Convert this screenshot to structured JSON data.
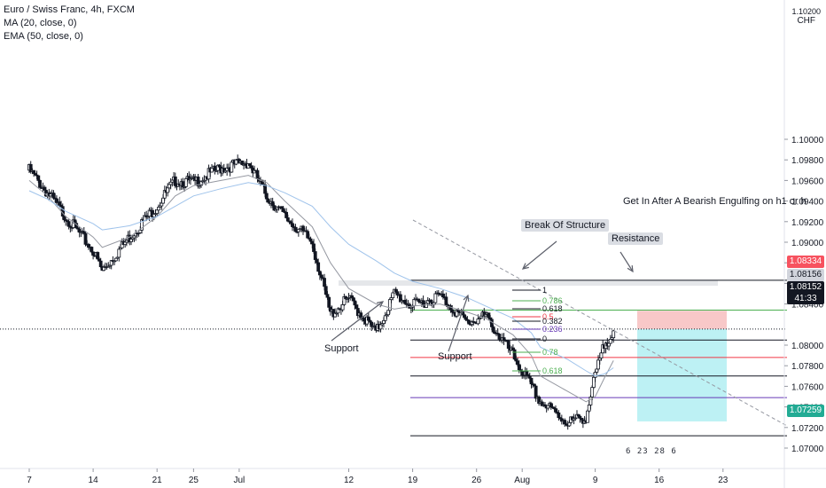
{
  "legend": {
    "symbol": "Euro / Swiss Franc, 4h, FXCM",
    "ma": "MA (20, close, 0)",
    "ema": "EMA (50, close, 0)"
  },
  "axis": {
    "currency": "CHF",
    "currency_top_tick": "1.10200",
    "y_ticks": [
      "1.10000",
      "1.09800",
      "1.09600",
      "1.09400",
      "1.09200",
      "1.09000",
      "1.08800",
      "1.08600",
      "1.08400",
      "1.08000",
      "1.07800",
      "1.07600",
      "1.07400",
      "1.07200",
      "1.07000"
    ],
    "x_ticks": [
      "7",
      "14",
      "21",
      "25",
      "Jul",
      "12",
      "19",
      "26",
      "Aug",
      "9",
      "16",
      "23"
    ]
  },
  "price_labels": {
    "resistance_price": "1.08334",
    "entry_price": "1.08156",
    "current_price": "1.08152",
    "countdown": "41:33",
    "target_price": "1.07259"
  },
  "colors": {
    "bull": "#ffffff",
    "bear": "#131722",
    "ma": "#9598a1",
    "ema": "#9fc3eb",
    "stop_zone": "#f5b5b5",
    "target_zone": "#a7ecf0",
    "resistance_line": "#4caf50",
    "fib_red": "#f23645",
    "fib_purple": "#673ab7",
    "target_label": "#22ab94",
    "resistance_label": "#f7525f"
  },
  "annotations": {
    "note": "Get In After A Bearish Engulfing on h1 or h",
    "bos": "Break Of Structure",
    "resistance": "Resistance",
    "support1": "Support",
    "support2": "Support"
  },
  "fib_levels": [
    "1",
    "0.786",
    "0.618",
    "0.5",
    "0.382",
    "0.236",
    "0",
    "0.78",
    "0.618"
  ],
  "watermark": "6 23 28 6",
  "chart_data": {
    "type": "candlestick",
    "title": "Euro / Swiss Franc, 4h, FXCM",
    "xlabel": "",
    "ylabel": "CHF",
    "ylim": [
      1.069,
      1.102
    ],
    "x": [
      "7",
      "14",
      "21",
      "25",
      "Jul",
      "12",
      "19",
      "26",
      "Aug",
      "9",
      "16",
      "23"
    ],
    "price_path": [
      {
        "x": "Jun 7",
        "y": 1.097
      },
      {
        "x": "Jun 9",
        "y": 1.0948
      },
      {
        "x": "Jun 11",
        "y": 1.0925
      },
      {
        "x": "Jun 14",
        "y": 1.0892
      },
      {
        "x": "Jun 15",
        "y": 1.0872
      },
      {
        "x": "Jun 18",
        "y": 1.0905
      },
      {
        "x": "Jun 21",
        "y": 1.0935
      },
      {
        "x": "Jun 23",
        "y": 1.096
      },
      {
        "x": "Jun 25",
        "y": 1.0958
      },
      {
        "x": "Jun 28",
        "y": 1.0972
      },
      {
        "x": "Jul 1",
        "y": 1.0978
      },
      {
        "x": "Jul 3",
        "y": 1.0945
      },
      {
        "x": "Jul 5",
        "y": 1.0925
      },
      {
        "x": "Jul 8",
        "y": 1.09
      },
      {
        "x": "Jul 10",
        "y": 1.083
      },
      {
        "x": "Jul 12",
        "y": 1.0845
      },
      {
        "x": "Jul 15",
        "y": 1.0812
      },
      {
        "x": "Jul 17",
        "y": 1.085
      },
      {
        "x": "Jul 19",
        "y": 1.0838
      },
      {
        "x": "Jul 22",
        "y": 1.0848
      },
      {
        "x": "Jul 25",
        "y": 1.0822
      },
      {
        "x": "Jul 27",
        "y": 1.0828
      },
      {
        "x": "Jul 30",
        "y": 1.079
      },
      {
        "x": "Aug 1",
        "y": 1.076
      },
      {
        "x": "Aug 2",
        "y": 1.0745
      },
      {
        "x": "Aug 5",
        "y": 1.0725
      },
      {
        "x": "Aug 7",
        "y": 1.073
      },
      {
        "x": "Aug 8",
        "y": 1.077
      },
      {
        "x": "Aug 9",
        "y": 1.08
      },
      {
        "x": "Aug 10",
        "y": 1.0815
      }
    ],
    "ma20": [
      1.096,
      1.0945,
      1.0925,
      1.0905,
      1.0895,
      1.0905,
      1.0925,
      1.0945,
      1.0955,
      1.096,
      1.0965,
      1.0958,
      1.094,
      1.0915,
      1.088,
      1.0855,
      1.084,
      1.0835,
      1.0838,
      1.084,
      1.0832,
      1.0826,
      1.081,
      1.079,
      1.077,
      1.0755,
      1.0745,
      1.075,
      1.0768,
      1.0785
    ],
    "ema50": [
      1.095,
      1.0942,
      1.093,
      1.0918,
      1.0912,
      1.0916,
      1.0925,
      1.0935,
      1.0945,
      1.0952,
      1.0958,
      1.0955,
      1.0948,
      1.0935,
      1.0915,
      1.0898,
      1.0882,
      1.087,
      1.0862,
      1.0855,
      1.0846,
      1.0838,
      1.0826,
      1.0812,
      1.0798,
      1.0786,
      1.0775,
      1.077,
      1.0772,
      1.0778
    ],
    "horizontal_levels": [
      1.0863,
      1.0834,
      1.0818,
      1.0805,
      1.0788,
      1.077,
      1.0749,
      1.0712
    ],
    "position": {
      "entry": 1.08156,
      "stop": 1.08334,
      "target": 1.07259
    }
  }
}
